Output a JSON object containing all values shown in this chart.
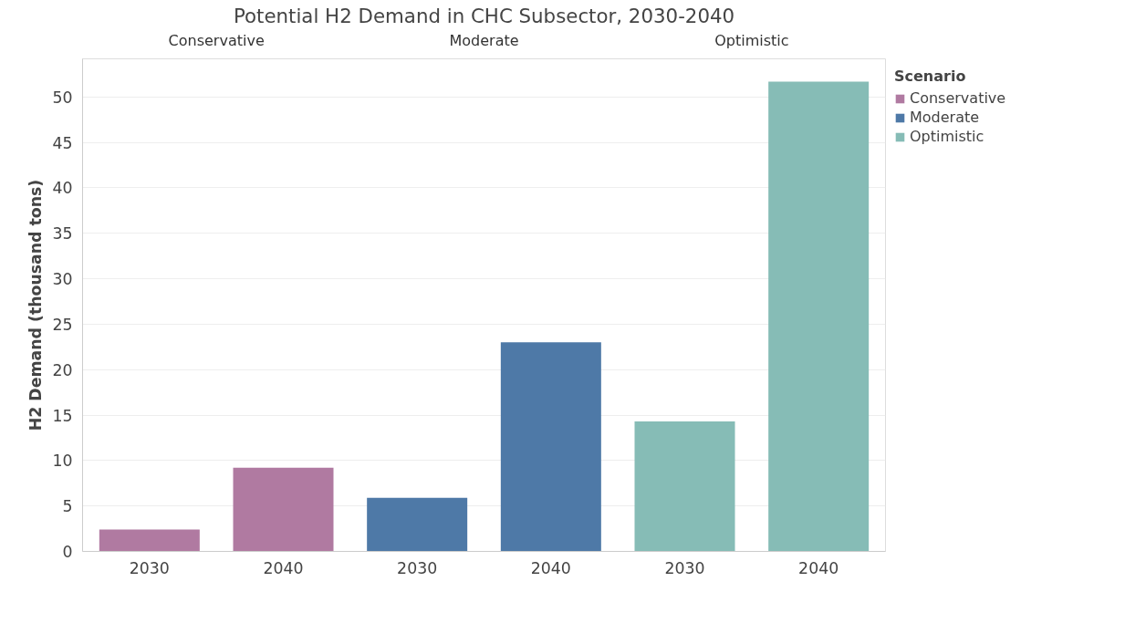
{
  "chart_data": {
    "type": "bar",
    "title": "Potential H2 Demand in CHC Subsector, 2030-2040",
    "ylabel": "H2 Demand (thousand tons)",
    "legend_title": "Scenario",
    "categories": [
      "2030",
      "2040",
      "2030",
      "2040",
      "2030",
      "2040"
    ],
    "annotations": [
      "Conservative",
      "Moderate",
      "Optimistic"
    ],
    "series": [
      {
        "name": "Conservative",
        "color": "#b07aa1",
        "values": [
          2.4,
          9.2,
          null,
          null,
          null,
          null
        ]
      },
      {
        "name": "Moderate",
        "color": "#4e79a7",
        "values": [
          null,
          null,
          5.9,
          23.0,
          null,
          null
        ]
      },
      {
        "name": "Optimistic",
        "color": "#86bcb6",
        "values": [
          null,
          null,
          null,
          null,
          14.3,
          51.7
        ]
      }
    ],
    "ylim": [
      0,
      54.2
    ],
    "yticks": [
      0,
      5,
      10,
      15,
      20,
      25,
      30,
      35,
      40,
      45,
      50
    ],
    "grid": "y",
    "legend": "top right"
  }
}
